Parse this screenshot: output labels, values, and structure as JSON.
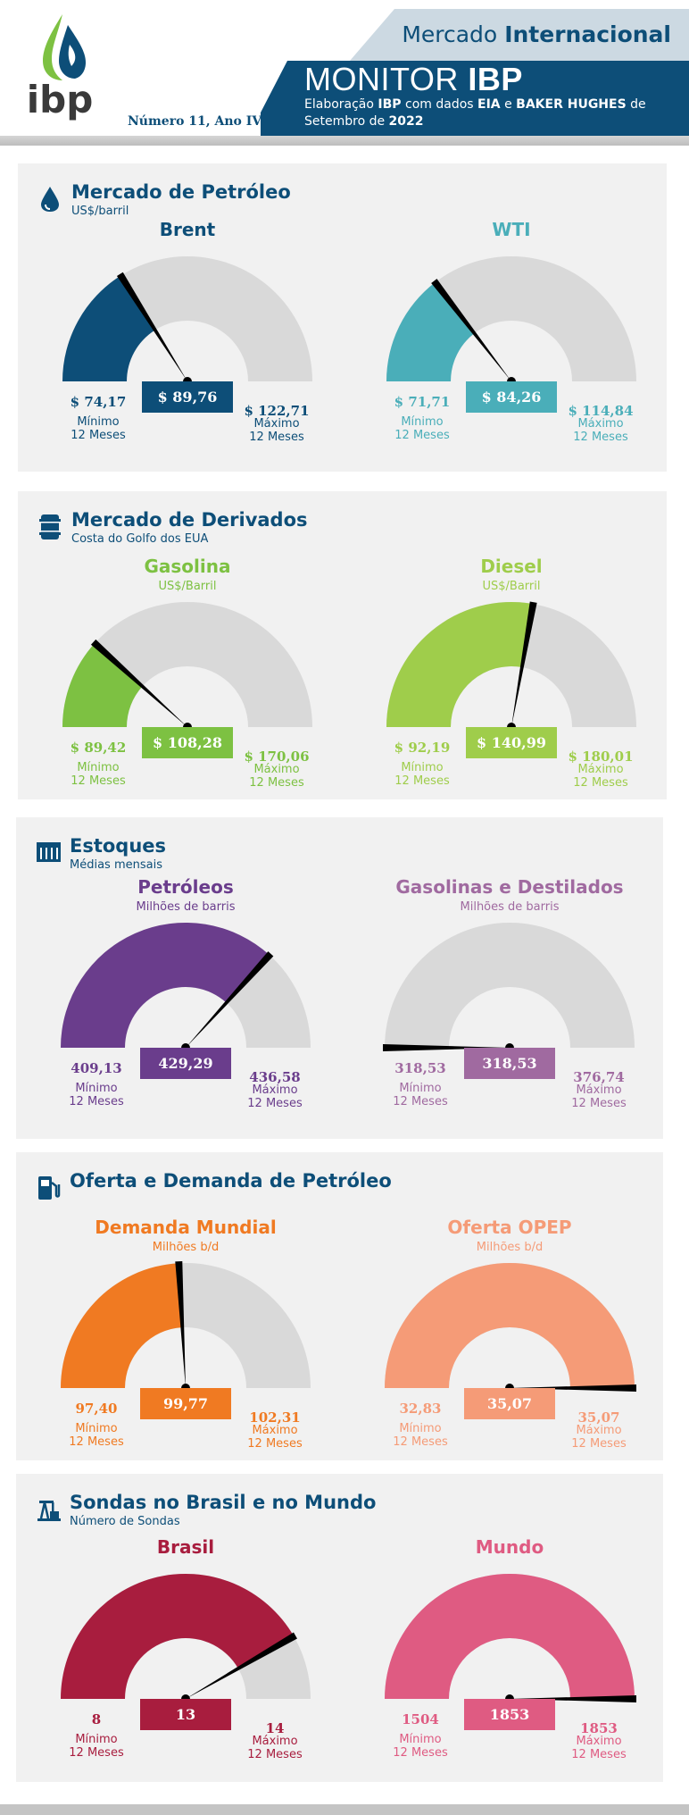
{
  "header": {
    "mercado_light": "Mercado",
    "mercado_bold": "Internacional",
    "monitor_light": "MONITOR",
    "monitor_bold": "IBP",
    "sub_prefix": "Elaboração",
    "sub_ibp": "IBP",
    "sub_mid": "com dados",
    "sub_eia": "EIA",
    "sub_e": "e",
    "sub_baker": "BAKER HUGHES",
    "sub_de": "de",
    "sub_month": "Setembro de",
    "sub_year": "2022",
    "edition": "Número 11, Ano IV",
    "logo_text": "ibp"
  },
  "colors": {
    "navy": "#0d4e78",
    "track": "#d9d9d9",
    "panel": "#f1f1f1"
  },
  "common": {
    "min_label": "Mínimo",
    "max_label": "Máximo",
    "period": "12 Meses"
  },
  "sections": [
    {
      "title": "Mercado de Petróleo",
      "subtitle": "US$/barril",
      "icon": "oil-drop-icon",
      "gauges": [
        {
          "title": "Brent",
          "unit": "",
          "color": "#0d4e78",
          "current": "$ 89,76",
          "min": "$ 74,17",
          "max": "$ 122,71",
          "vmin": 74.17,
          "vmax": 122.71,
          "v": 89.76
        },
        {
          "title": "WTI",
          "unit": "",
          "color": "#4aaeb9",
          "current": "$ 84,26",
          "min": "$ 71,71",
          "max": "$ 114,84",
          "vmin": 71.71,
          "vmax": 114.84,
          "v": 84.26
        }
      ]
    },
    {
      "title": "Mercado de Derivados",
      "subtitle": "Costa do Golfo dos EUA",
      "icon": "barrel-icon",
      "gauges": [
        {
          "title": "Gasolina",
          "unit": "US$/Barril",
          "color": "#7dc142",
          "current": "$ 108,28",
          "min": "$ 89,42",
          "max": "$ 170,06",
          "vmin": 89.42,
          "vmax": 170.06,
          "v": 108.28
        },
        {
          "title": "Diesel",
          "unit": "US$/Barril",
          "color": "#9fcd4b",
          "current": "$ 140,99",
          "min": "$ 92,19",
          "max": "$ 180,01",
          "vmin": 92.19,
          "vmax": 180.01,
          "v": 140.99
        }
      ]
    },
    {
      "title": "Estoques",
      "subtitle": "Médias mensais",
      "icon": "storage-tank-icon",
      "gauges": [
        {
          "title": "Petróleos",
          "unit": "Milhões de barris",
          "color": "#6a3d8c",
          "current": "429,29",
          "min": "409,13",
          "max": "436,58",
          "vmin": 409.13,
          "vmax": 436.58,
          "v": 429.29
        },
        {
          "title": "Gasolinas e Destilados",
          "unit": "Milhões de barris",
          "color": "#a06aa0",
          "current": "318,53",
          "min": "318,53",
          "max": "376,74",
          "vmin": 318.53,
          "vmax": 376.74,
          "v": 318.53
        }
      ]
    },
    {
      "title": "Oferta e Demanda de Petróleo",
      "subtitle": "",
      "icon": "fuel-pump-icon",
      "gauges": [
        {
          "title": "Demanda Mundial",
          "unit": "Milhões b/d",
          "color": "#f07a22",
          "current": "99,77",
          "min": "97,40",
          "max": "102,31",
          "vmin": 97.4,
          "vmax": 102.31,
          "v": 99.77
        },
        {
          "title": "Oferta OPEP",
          "unit": "Milhões b/d",
          "color": "#f59b77",
          "current": "35,07",
          "min": "32,83",
          "max": "35,07",
          "vmin": 32.83,
          "vmax": 35.07,
          "v": 35.07
        }
      ]
    },
    {
      "title": "Sondas no Brasil e no Mundo",
      "subtitle": "Número de Sondas",
      "icon": "oil-rig-icon",
      "gauges": [
        {
          "title": "Brasil",
          "unit": "",
          "color": "#a81d3e",
          "current": "13",
          "min": "8",
          "max": "14",
          "vmin": 8,
          "vmax": 14,
          "v": 13
        },
        {
          "title": "Mundo",
          "unit": "",
          "color": "#df5b82",
          "current": "1853",
          "min": "1504",
          "max": "1853",
          "vmin": 1504,
          "vmax": 1853,
          "v": 1853
        }
      ]
    }
  ]
}
